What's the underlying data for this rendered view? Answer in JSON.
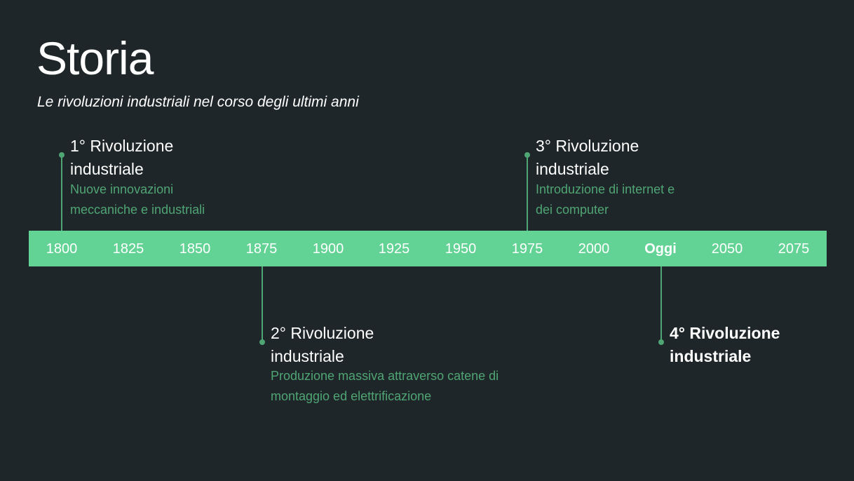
{
  "header": {
    "title": "Storia",
    "subtitle": "Le rivoluzioni industriali nel corso degli ultimi anni"
  },
  "timeline": {
    "ticks": [
      "1800",
      "1825",
      "1850",
      "1875",
      "1900",
      "1925",
      "1950",
      "1975",
      "2000",
      "Oggi",
      "2050",
      "2075"
    ],
    "highlight_tick": "Oggi",
    "bar_color": "#62d394",
    "accent_color": "#4fa574"
  },
  "events": [
    {
      "title_lines": [
        "1° Rivoluzione",
        "industriale"
      ],
      "desc_lines": [
        "Nuove innovazioni",
        "meccaniche e industriali"
      ],
      "tick": "1800",
      "side": "above"
    },
    {
      "title_lines": [
        "2° Rivoluzione",
        "industriale"
      ],
      "desc_lines": [
        "Produzione massiva attraverso catene di",
        "montaggio ed elettrificazione"
      ],
      "tick": "1875",
      "side": "below"
    },
    {
      "title_lines": [
        "3° Rivoluzione",
        "industriale"
      ],
      "desc_lines": [
        "Introduzione di internet e",
        "dei computer"
      ],
      "tick": "1975",
      "side": "above"
    },
    {
      "title_lines": [
        "4° Rivoluzione",
        "industriale"
      ],
      "desc_lines": [],
      "tick": "Oggi",
      "side": "below",
      "bold": true
    }
  ]
}
